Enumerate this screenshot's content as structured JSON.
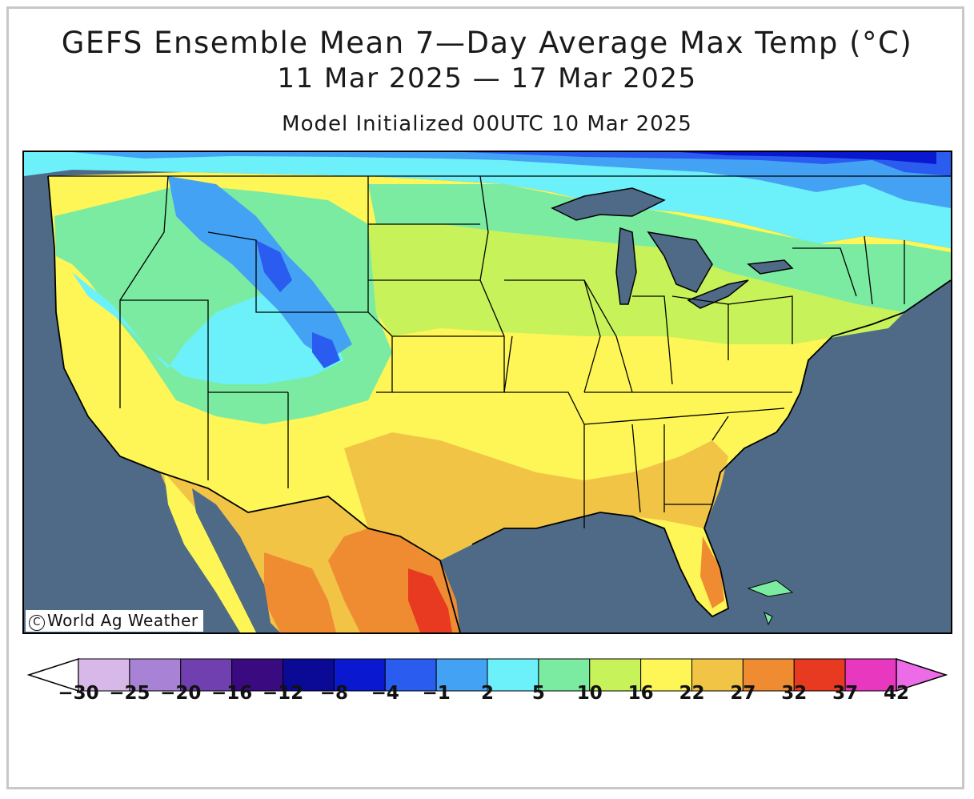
{
  "header": {
    "title": "GEFS Ensemble Mean 7—Day Average Max Temp (°C)",
    "date_range": "11 Mar 2025 — 17 Mar 2025",
    "init": "Model Initialized 00UTC 10 Mar 2025"
  },
  "map": {
    "region": "Contiguous United States",
    "credit": "World Ag Weather",
    "credit_symbol": "C",
    "ocean_color": "#4f6a86"
  },
  "legend": {
    "colors": [
      "#ffffff",
      "#d8b8e8",
      "#a882d4",
      "#7040b0",
      "#3a0a80",
      "#0a0a96",
      "#0a18d0",
      "#2a5cf0",
      "#44a2f4",
      "#6cf0fa",
      "#7ceba2",
      "#c8f25a",
      "#fdf656",
      "#f2c446",
      "#ef8c32",
      "#e83a20",
      "#e838c0",
      "#ec6ce8"
    ],
    "labels": [
      "−30",
      "−25",
      "−20",
      "−16",
      "−12",
      "−8",
      "−4",
      "−1",
      "2",
      "5",
      "10",
      "16",
      "22",
      "27",
      "32",
      "37",
      "42"
    ]
  }
}
